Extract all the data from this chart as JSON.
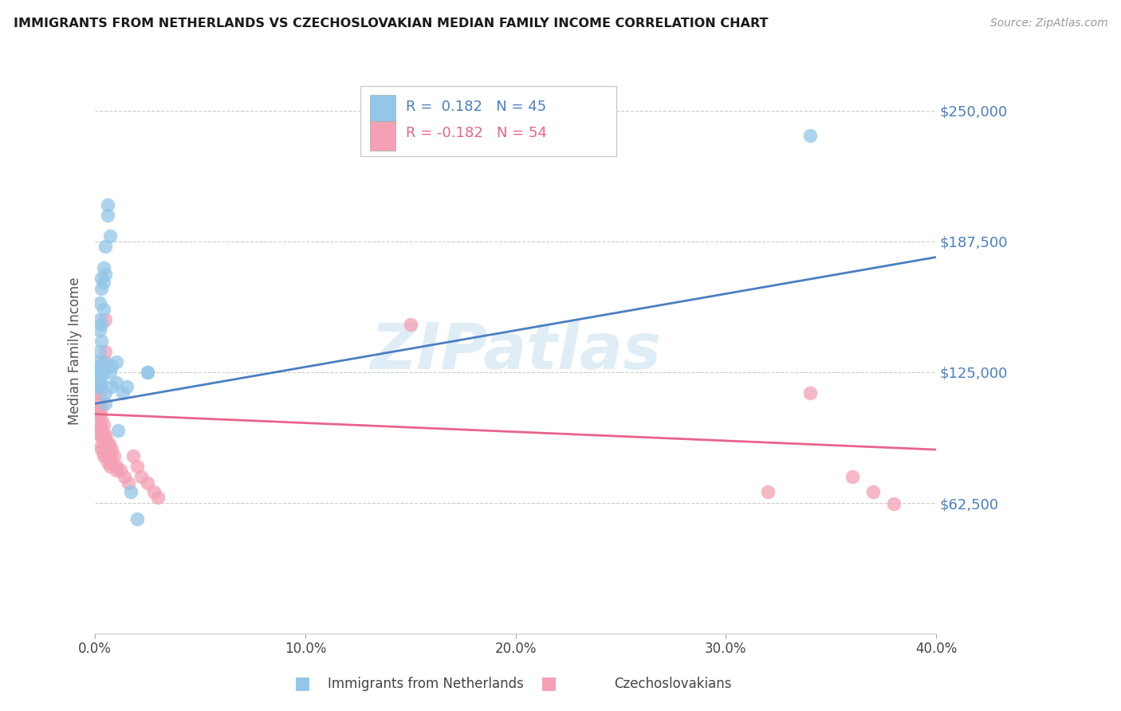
{
  "title": "IMMIGRANTS FROM NETHERLANDS VS CZECHOSLOVAKIAN MEDIAN FAMILY INCOME CORRELATION CHART",
  "source": "Source: ZipAtlas.com",
  "ylabel": "Median Family Income",
  "xlim": [
    0.0,
    0.4
  ],
  "ylim": [
    0,
    270000
  ],
  "watermark": "ZIPatlas",
  "legend_blue_r": "0.182",
  "legend_blue_n": "45",
  "legend_pink_r": "-0.182",
  "legend_pink_n": "54",
  "legend_label_blue": "Immigrants from Netherlands",
  "legend_label_pink": "Czechoslovakians",
  "blue_color": "#93c6e8",
  "pink_color": "#f4a0b5",
  "line_blue_color": "#4a7fc1",
  "line_pink_color": "#e8648a",
  "yticks": [
    0,
    62500,
    125000,
    187500,
    250000
  ],
  "ytick_labels": [
    "",
    "$62,500",
    "$125,000",
    "$187,500",
    "$250,000"
  ],
  "xticks": [
    0.0,
    0.1,
    0.2,
    0.3,
    0.4
  ],
  "xtick_labels": [
    "0.0%",
    "10.0%",
    "20.0%",
    "30.0%",
    "40.0%"
  ],
  "blue_scatter": [
    [
      0.001,
      126000
    ],
    [
      0.001,
      122000
    ],
    [
      0.001,
      119000
    ],
    [
      0.001,
      130000
    ],
    [
      0.001,
      118000
    ],
    [
      0.002,
      158000
    ],
    [
      0.002,
      150000
    ],
    [
      0.002,
      145000
    ],
    [
      0.002,
      135000
    ],
    [
      0.002,
      128000
    ],
    [
      0.002,
      125000
    ],
    [
      0.002,
      120000
    ],
    [
      0.002,
      118000
    ],
    [
      0.003,
      170000
    ],
    [
      0.003,
      165000
    ],
    [
      0.003,
      148000
    ],
    [
      0.003,
      140000
    ],
    [
      0.003,
      128000
    ],
    [
      0.003,
      125000
    ],
    [
      0.003,
      120000
    ],
    [
      0.004,
      175000
    ],
    [
      0.004,
      168000
    ],
    [
      0.004,
      155000
    ],
    [
      0.004,
      130000
    ],
    [
      0.004,
      125000
    ],
    [
      0.005,
      185000
    ],
    [
      0.005,
      172000
    ],
    [
      0.005,
      115000
    ],
    [
      0.005,
      110000
    ],
    [
      0.006,
      200000
    ],
    [
      0.006,
      205000
    ],
    [
      0.007,
      190000
    ],
    [
      0.007,
      125000
    ],
    [
      0.008,
      128000
    ],
    [
      0.008,
      118000
    ],
    [
      0.01,
      130000
    ],
    [
      0.01,
      120000
    ],
    [
      0.011,
      97000
    ],
    [
      0.013,
      115000
    ],
    [
      0.015,
      118000
    ],
    [
      0.017,
      68000
    ],
    [
      0.02,
      55000
    ],
    [
      0.025,
      125000
    ],
    [
      0.34,
      238000
    ],
    [
      0.025,
      125000
    ]
  ],
  "pink_scatter": [
    [
      0.001,
      118000
    ],
    [
      0.001,
      112000
    ],
    [
      0.001,
      108000
    ],
    [
      0.001,
      105000
    ],
    [
      0.002,
      115000
    ],
    [
      0.002,
      110000
    ],
    [
      0.002,
      105000
    ],
    [
      0.002,
      100000
    ],
    [
      0.002,
      98000
    ],
    [
      0.002,
      95000
    ],
    [
      0.003,
      108000
    ],
    [
      0.003,
      103000
    ],
    [
      0.003,
      98000
    ],
    [
      0.003,
      95000
    ],
    [
      0.003,
      90000
    ],
    [
      0.003,
      88000
    ],
    [
      0.004,
      100000
    ],
    [
      0.004,
      95000
    ],
    [
      0.004,
      90000
    ],
    [
      0.004,
      87000
    ],
    [
      0.004,
      85000
    ],
    [
      0.005,
      135000
    ],
    [
      0.005,
      130000
    ],
    [
      0.005,
      95000
    ],
    [
      0.005,
      88000
    ],
    [
      0.005,
      85000
    ],
    [
      0.006,
      92000
    ],
    [
      0.006,
      88000
    ],
    [
      0.006,
      85000
    ],
    [
      0.006,
      82000
    ],
    [
      0.007,
      90000
    ],
    [
      0.007,
      85000
    ],
    [
      0.007,
      80000
    ],
    [
      0.008,
      88000
    ],
    [
      0.008,
      82000
    ],
    [
      0.009,
      85000
    ],
    [
      0.01,
      80000
    ],
    [
      0.012,
      78000
    ],
    [
      0.014,
      75000
    ],
    [
      0.016,
      72000
    ],
    [
      0.018,
      85000
    ],
    [
      0.02,
      80000
    ],
    [
      0.022,
      75000
    ],
    [
      0.025,
      72000
    ],
    [
      0.028,
      68000
    ],
    [
      0.03,
      65000
    ],
    [
      0.15,
      148000
    ],
    [
      0.32,
      68000
    ],
    [
      0.34,
      115000
    ],
    [
      0.36,
      75000
    ],
    [
      0.37,
      68000
    ],
    [
      0.38,
      62000
    ],
    [
      0.005,
      150000
    ],
    [
      0.01,
      78000
    ]
  ]
}
